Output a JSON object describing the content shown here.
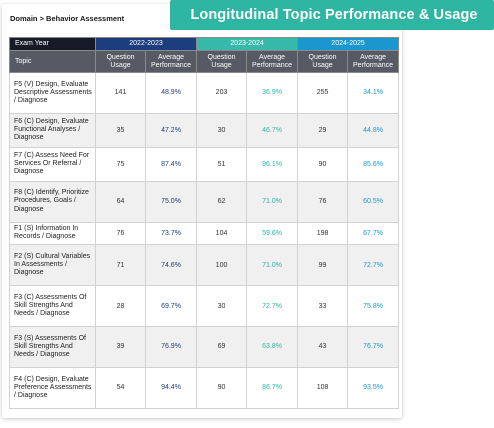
{
  "breadcrumb": "Domain > Behavior Assessment",
  "banner": "Longitudinal Topic Performance & Usage",
  "table": {
    "exam_year_label": "Exam Year",
    "topic_label": "Topic",
    "years": [
      "2022-2023",
      "2023-2024",
      "2024-2025"
    ],
    "usage_label": "Question Usage",
    "perf_label": "Average Performance",
    "rows": [
      {
        "topic": "F5 (V) Design, Evaluate Descriptive Assessments / Diagnose",
        "u1": "141",
        "p1": "48.9%",
        "u2": "203",
        "p2": "36.9%",
        "u3": "255",
        "p3": "34.1%"
      },
      {
        "topic": "F6 (C) Design, Evaluate Functional Analyses / Diagnose",
        "u1": "35",
        "p1": "47.2%",
        "u2": "30",
        "p2": "46.7%",
        "u3": "29",
        "p3": "44.8%"
      },
      {
        "topic": "F7 (C) Assess Need For Services Or Referral / Diagnose",
        "u1": "75",
        "p1": "87.4%",
        "u2": "51",
        "p2": "96.1%",
        "u3": "90",
        "p3": "85.6%"
      },
      {
        "topic": "F8 (C) Identify, Prioritize Procedures, Goals / Diagnose",
        "u1": "64",
        "p1": "75.0%",
        "u2": "62",
        "p2": "71.0%",
        "u3": "76",
        "p3": "60.5%"
      },
      {
        "topic": "F1 (S) Information In Records / Diagnose",
        "u1": "76",
        "p1": "73.7%",
        "u2": "104",
        "p2": "59.6%",
        "u3": "198",
        "p3": "67.7%"
      },
      {
        "topic": "F2 (S) Cultural Variables In Assessments / Diagnose",
        "u1": "71",
        "p1": "74.6%",
        "u2": "100",
        "p2": "71.0%",
        "u3": "99",
        "p3": "72.7%"
      },
      {
        "topic": "F3 (C) Assessments Of Skill Strengths And Needs / Diagnose",
        "u1": "28",
        "p1": "69.7%",
        "u2": "30",
        "p2": "72.7%",
        "u3": "33",
        "p3": "75.8%"
      },
      {
        "topic": "F3 (S) Assessments Of Skill Strengths And Needs / Diagnose",
        "u1": "39",
        "p1": "76.9%",
        "u2": "69",
        "p2": "63.8%",
        "u3": "43",
        "p3": "76.7%"
      },
      {
        "topic": "F4 (C) Design, Evaluate Preference Assessments / Diagnose",
        "u1": "54",
        "p1": "94.4%",
        "u2": "90",
        "p2": "86.7%",
        "u3": "108",
        "p3": "93.5%"
      }
    ]
  },
  "colors": {
    "banner": "#2eb6a3",
    "year1": "#1d3e7c",
    "year2": "#37b9aa",
    "year3": "#1b96cf",
    "header_dark": "#555a64"
  }
}
